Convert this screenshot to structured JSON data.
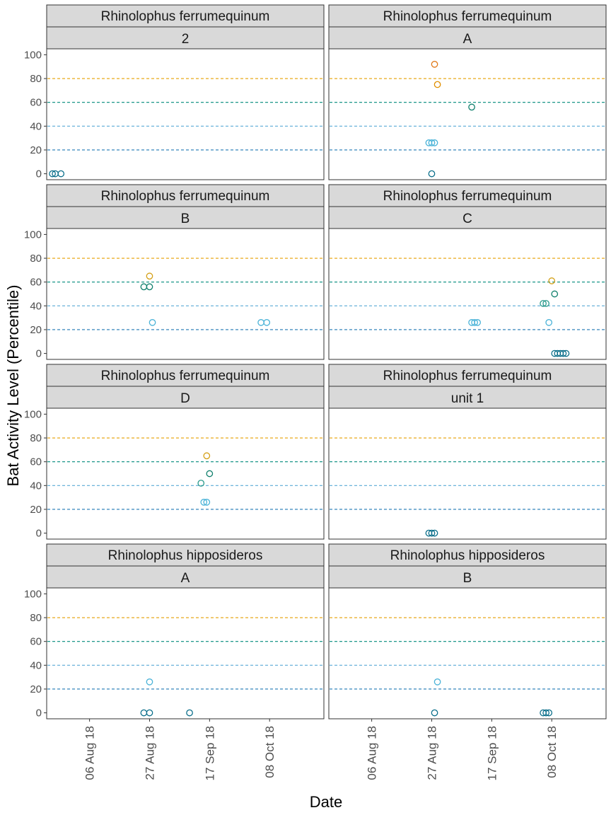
{
  "chart_data": {
    "type": "scatter",
    "xlabel": "Date",
    "ylabel": "Bat Activity Level (Percentile)",
    "ylim": [
      -5,
      105
    ],
    "xlim": [
      "2018-07-22",
      "2018-10-27"
    ],
    "y_ticks": [
      0,
      20,
      40,
      60,
      80,
      100
    ],
    "x_ticks": [
      {
        "date": "2018-08-06",
        "label": "06 Aug 18"
      },
      {
        "date": "2018-08-27",
        "label": "27 Aug 18"
      },
      {
        "date": "2018-09-17",
        "label": "17 Sep 18"
      },
      {
        "date": "2018-10-08",
        "label": "08 Oct 18"
      }
    ],
    "reference_lines": [
      {
        "y": 20,
        "color": "#1f78b4"
      },
      {
        "y": 40,
        "color": "#5aa9d6"
      },
      {
        "y": 60,
        "color": "#00897b"
      },
      {
        "y": 80,
        "color": "#e69f00"
      }
    ],
    "level_colors": {
      "0": "#0a6e8a",
      "25": "#4bb3d8",
      "40": "#2a9a8c",
      "50": "#0f7f6c",
      "55": "#0f7f6c",
      "60": "#d4a017",
      "65": "#d4a017",
      "75": "#e08f00",
      "90": "#e0791a"
    },
    "facets": [
      {
        "species": "Rhinolophus ferrumequinum",
        "site": "2",
        "points": [
          {
            "x": "2018-07-24",
            "y": 0
          },
          {
            "x": "2018-07-25",
            "y": 0
          },
          {
            "x": "2018-07-27",
            "y": 0
          }
        ]
      },
      {
        "species": "Rhinolophus ferrumequinum",
        "site": "A",
        "points": [
          {
            "x": "2018-08-26",
            "y": 26
          },
          {
            "x": "2018-08-27",
            "y": 26
          },
          {
            "x": "2018-08-28",
            "y": 26
          },
          {
            "x": "2018-08-27",
            "y": 0
          },
          {
            "x": "2018-08-28",
            "y": 92
          },
          {
            "x": "2018-08-29",
            "y": 75
          },
          {
            "x": "2018-09-10",
            "y": 56
          }
        ]
      },
      {
        "species": "Rhinolophus ferrumequinum",
        "site": "B",
        "points": [
          {
            "x": "2018-08-25",
            "y": 56
          },
          {
            "x": "2018-08-27",
            "y": 56
          },
          {
            "x": "2018-08-27",
            "y": 65
          },
          {
            "x": "2018-08-28",
            "y": 26
          },
          {
            "x": "2018-10-05",
            "y": 26
          },
          {
            "x": "2018-10-07",
            "y": 26
          }
        ]
      },
      {
        "species": "Rhinolophus ferrumequinum",
        "site": "C",
        "points": [
          {
            "x": "2018-09-10",
            "y": 26
          },
          {
            "x": "2018-09-11",
            "y": 26
          },
          {
            "x": "2018-09-12",
            "y": 26
          },
          {
            "x": "2018-10-05",
            "y": 42
          },
          {
            "x": "2018-10-06",
            "y": 42
          },
          {
            "x": "2018-10-07",
            "y": 26
          },
          {
            "x": "2018-10-08",
            "y": 61
          },
          {
            "x": "2018-10-09",
            "y": 0
          },
          {
            "x": "2018-10-09",
            "y": 50
          },
          {
            "x": "2018-10-10",
            "y": 0
          },
          {
            "x": "2018-10-11",
            "y": 0
          },
          {
            "x": "2018-10-12",
            "y": 0
          },
          {
            "x": "2018-10-13",
            "y": 0
          }
        ]
      },
      {
        "species": "Rhinolophus ferrumequinum",
        "site": "D",
        "points": [
          {
            "x": "2018-09-14",
            "y": 42
          },
          {
            "x": "2018-09-15",
            "y": 26
          },
          {
            "x": "2018-09-16",
            "y": 26
          },
          {
            "x": "2018-09-16",
            "y": 65
          },
          {
            "x": "2018-09-17",
            "y": 50
          }
        ]
      },
      {
        "species": "Rhinolophus ferrumequinum",
        "site": "unit 1",
        "points": [
          {
            "x": "2018-08-26",
            "y": 0
          },
          {
            "x": "2018-08-27",
            "y": 0
          },
          {
            "x": "2018-08-28",
            "y": 0
          }
        ]
      },
      {
        "species": "Rhinolophus hipposideros",
        "site": "A",
        "points": [
          {
            "x": "2018-08-25",
            "y": 0
          },
          {
            "x": "2018-08-27",
            "y": 26
          },
          {
            "x": "2018-08-27",
            "y": 0
          },
          {
            "x": "2018-09-10",
            "y": 0
          }
        ]
      },
      {
        "species": "Rhinolophus hipposideros",
        "site": "B",
        "points": [
          {
            "x": "2018-08-28",
            "y": 0
          },
          {
            "x": "2018-08-29",
            "y": 26
          },
          {
            "x": "2018-10-05",
            "y": 0
          },
          {
            "x": "2018-10-06",
            "y": 0
          },
          {
            "x": "2018-10-07",
            "y": 0
          }
        ]
      }
    ]
  }
}
